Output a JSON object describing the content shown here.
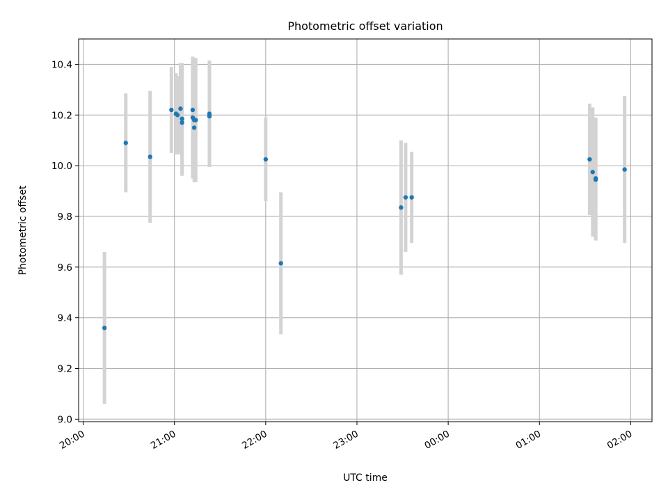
{
  "chart_data": {
    "type": "scatter",
    "title": "Photometric offset variation",
    "xlabel": "UTC time",
    "ylabel": "Photometric offset",
    "x_tick_labels": [
      "20:00",
      "21:00",
      "22:00",
      "23:00",
      "00:00",
      "01:00",
      "02:00"
    ],
    "x_ticks": [
      "20:00",
      "21:00",
      "22:00",
      "23:00",
      "00:00",
      "01:00",
      "02:00"
    ],
    "y_ticks": [
      9.0,
      9.2,
      9.4,
      9.6,
      9.8,
      10.0,
      10.2,
      10.4
    ],
    "y_tick_labels": [
      "9.0",
      "9.2",
      "9.4",
      "9.6",
      "9.8",
      "10.0",
      "10.2",
      "10.4"
    ],
    "xlim": [
      "19:57",
      "02:14"
    ],
    "ylim": [
      8.99,
      10.5
    ],
    "grid": true,
    "colors": {
      "point": "#1f77b4",
      "errorbar": "#d3d3d3",
      "grid": "#b0b0b0"
    },
    "series": [
      {
        "points": [
          {
            "x": "20:14",
            "y": 9.36,
            "yerr": 0.3
          },
          {
            "x": "20:28",
            "y": 10.09,
            "yerr": 0.195
          },
          {
            "x": "20:44",
            "y": 10.035,
            "yerr": 0.26
          },
          {
            "x": "20:58",
            "y": 10.22,
            "yerr": 0.17
          },
          {
            "x": "21:01",
            "y": 10.205,
            "yerr": 0.16
          },
          {
            "x": "21:02",
            "y": 10.2,
            "yerr": 0.155
          },
          {
            "x": "21:04",
            "y": 10.225,
            "yerr": 0.18
          },
          {
            "x": "21:05",
            "y": 10.185,
            "yerr": 0.22
          },
          {
            "x": "21:05",
            "y": 10.17,
            "yerr": 0.21
          },
          {
            "x": "21:12",
            "y": 10.22,
            "yerr": 0.21
          },
          {
            "x": "21:12",
            "y": 10.19,
            "yerr": 0.24
          },
          {
            "x": "21:13",
            "y": 10.15,
            "yerr": 0.2
          },
          {
            "x": "21:13",
            "y": 10.18,
            "yerr": 0.245
          },
          {
            "x": "21:14",
            "y": 10.18,
            "yerr": 0.245
          },
          {
            "x": "21:23",
            "y": 10.205,
            "yerr": 0.21
          },
          {
            "x": "21:23",
            "y": 10.195,
            "yerr": 0.185
          },
          {
            "x": "22:00",
            "y": 10.025,
            "yerr": 0.165
          },
          {
            "x": "22:10",
            "y": 9.615,
            "yerr": 0.28
          },
          {
            "x": "23:29",
            "y": 9.835,
            "yerr": 0.265
          },
          {
            "x": "23:32",
            "y": 9.875,
            "yerr": 0.215
          },
          {
            "x": "23:36",
            "y": 9.875,
            "yerr": 0.18
          },
          {
            "x": "01:33",
            "y": 10.025,
            "yerr": 0.22
          },
          {
            "x": "01:35",
            "y": 9.975,
            "yerr": 0.255
          },
          {
            "x": "01:37",
            "y": 9.95,
            "yerr": 0.24
          },
          {
            "x": "01:37",
            "y": 9.945,
            "yerr": 0.24
          },
          {
            "x": "01:56",
            "y": 9.985,
            "yerr": 0.29
          }
        ]
      }
    ]
  }
}
